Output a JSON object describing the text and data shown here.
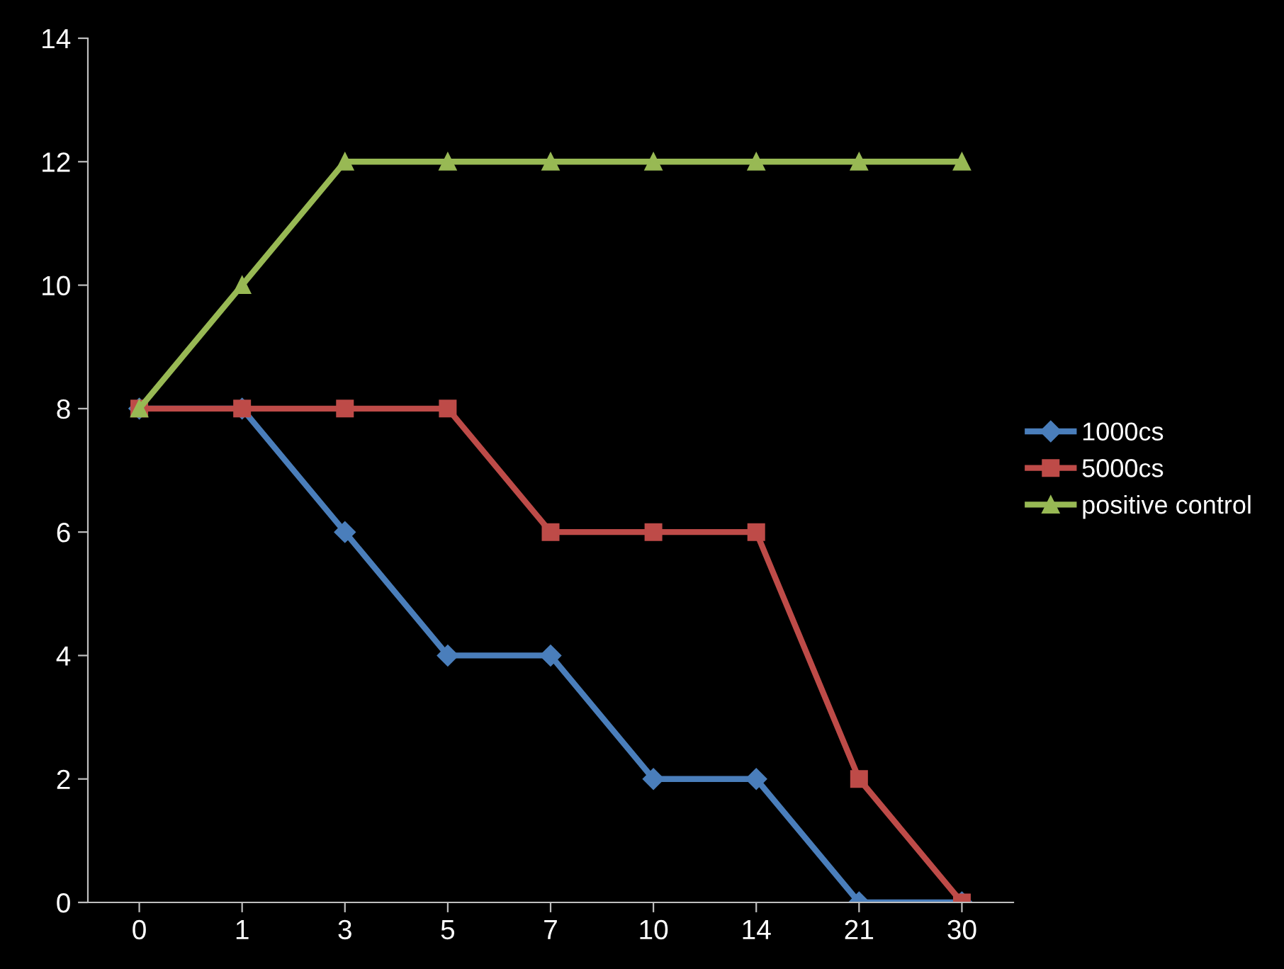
{
  "chart_data": {
    "type": "line",
    "categories": [
      "0",
      "1",
      "3",
      "5",
      "7",
      "10",
      "14",
      "21",
      "30"
    ],
    "series": [
      {
        "name": "1000cs",
        "color": "#4a7ebb",
        "marker": "diamond",
        "values": [
          8,
          8,
          6,
          4,
          4,
          2,
          2,
          0,
          0
        ]
      },
      {
        "name": "5000cs",
        "color": "#be4b48",
        "marker": "square",
        "values": [
          8,
          8,
          8,
          8,
          6,
          6,
          6,
          2,
          0
        ]
      },
      {
        "name": "positive control",
        "color": "#98b954",
        "marker": "triangle",
        "values": [
          8,
          10,
          12,
          12,
          12,
          12,
          12,
          12,
          12
        ]
      }
    ],
    "ylim": [
      0,
      14
    ],
    "yticks": [
      0,
      2,
      4,
      6,
      8,
      10,
      12,
      14
    ],
    "grid": false,
    "legend": "right",
    "line_style": "solid"
  }
}
